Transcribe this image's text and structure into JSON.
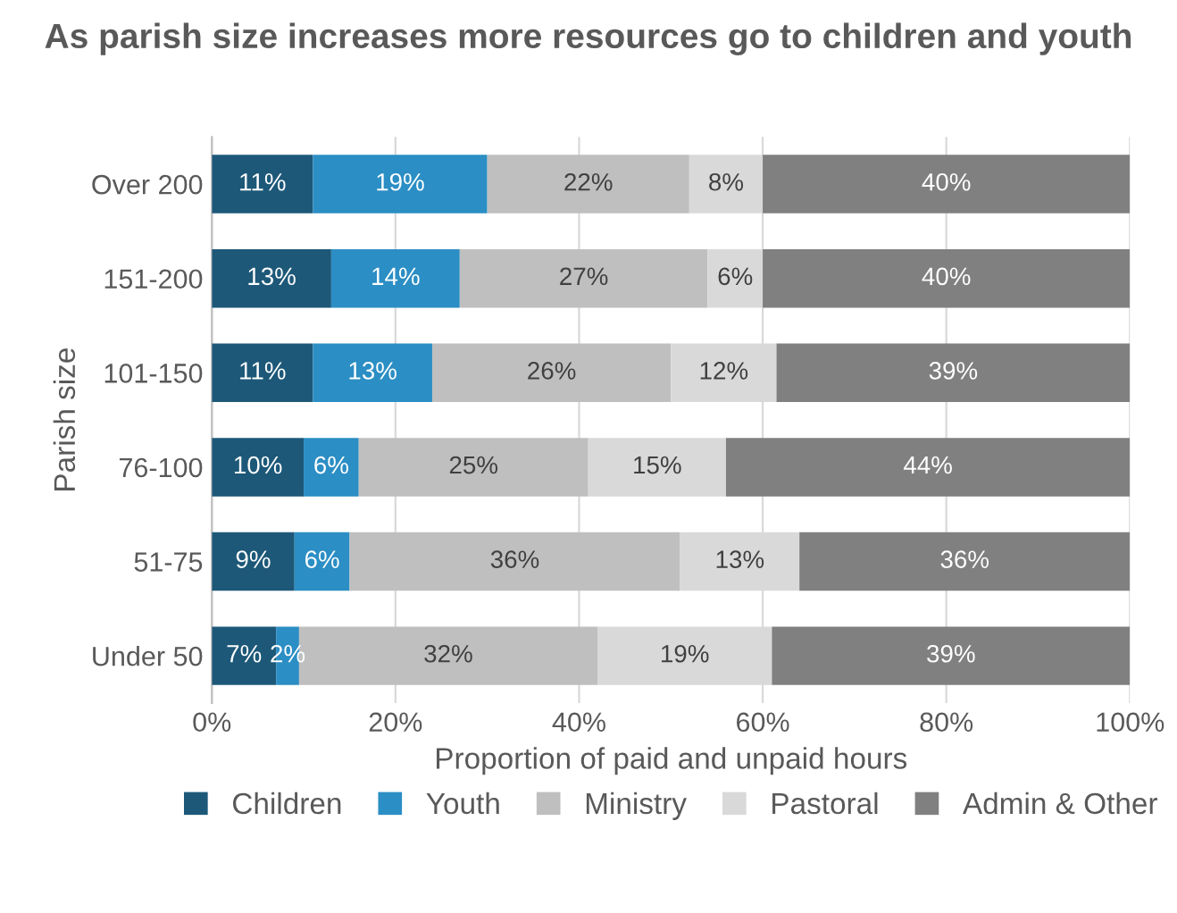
{
  "chart_data": {
    "type": "bar",
    "orientation": "horizontal",
    "stacked": true,
    "title": "As parish size increases more resources go to children and youth",
    "xlabel": "Proportion of paid and unpaid hours",
    "ylabel": "Parish size",
    "categories": [
      "Over 200",
      "151-200",
      "101-150",
      "76-100",
      "51-75",
      "Under 50"
    ],
    "series": [
      {
        "name": "Children",
        "color": "#1d5878",
        "values": [
          11,
          13,
          11,
          10,
          9,
          7
        ],
        "value_labels": [
          "11%",
          "13%",
          "11%",
          "10%",
          "9%",
          "7%"
        ]
      },
      {
        "name": "Youth",
        "color": "#2b8ec4",
        "values": [
          19,
          14,
          13,
          6,
          6,
          2.5
        ],
        "value_labels": [
          "19%",
          "14%",
          "13%",
          "6%",
          "6%",
          "2%"
        ]
      },
      {
        "name": "Ministry",
        "color": "#bfbfbf",
        "values": [
          22,
          27,
          26,
          25,
          36,
          32.5
        ],
        "value_labels": [
          "22%",
          "27%",
          "26%",
          "25%",
          "36%",
          "32%"
        ]
      },
      {
        "name": "Pastoral",
        "color": "#d9d9d9",
        "values": [
          8,
          6,
          11.5,
          15,
          13,
          19
        ],
        "value_labels": [
          "8%",
          "6%",
          "12%",
          "15%",
          "13%",
          "19%"
        ]
      },
      {
        "name": "Admin & Other",
        "color": "#808080",
        "values": [
          40,
          40,
          38.5,
          44,
          36,
          39
        ],
        "value_labels": [
          "40%",
          "40%",
          "39%",
          "44%",
          "36%",
          "39%"
        ]
      }
    ],
    "xlim": [
      0,
      100
    ],
    "xticks": [
      {
        "value": 0,
        "label": "0%"
      },
      {
        "value": 20,
        "label": "20%"
      },
      {
        "value": 40,
        "label": "40%"
      },
      {
        "value": 60,
        "label": "60%"
      },
      {
        "value": 80,
        "label": "80%"
      },
      {
        "value": 100,
        "label": "100%"
      }
    ],
    "grid": "x",
    "legend": "bottom"
  }
}
